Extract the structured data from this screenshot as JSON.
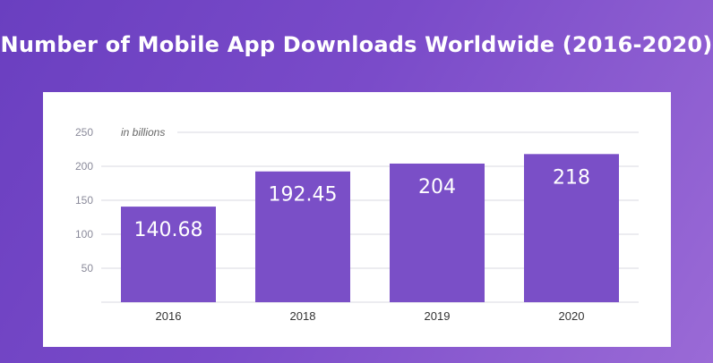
{
  "title": "Number of Mobile App Downloads Worldwide (2016-2020)",
  "colors": {
    "bar": "#7a4fc7",
    "grid": "#d8d8e2",
    "background": "#7a4bc9"
  },
  "chart_data": {
    "type": "bar",
    "title": "Number of Mobile App Downloads Worldwide (2016-2020)",
    "unit_label": "in billions",
    "categories": [
      "2016",
      "2018",
      "2019",
      "2020"
    ],
    "values": [
      140.68,
      192.45,
      204,
      218
    ],
    "value_labels": [
      "140.68",
      "192.45",
      "204",
      "218"
    ],
    "yticks": [
      50,
      100,
      150,
      200,
      250
    ],
    "ylim": [
      0,
      250
    ],
    "grid": true,
    "legend": "none"
  }
}
